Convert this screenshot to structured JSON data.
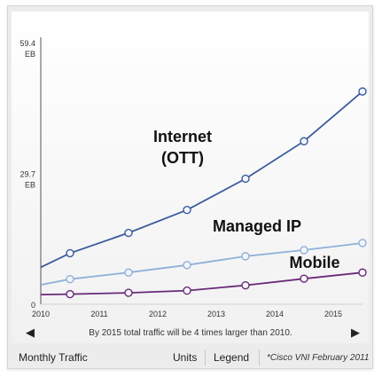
{
  "chart_data": {
    "type": "line",
    "x": [
      2010.5,
      2011.5,
      2012.5,
      2013.5,
      2014.5,
      2015.5
    ],
    "x_ticks": [
      "2010",
      "2011",
      "2012",
      "2013",
      "2014",
      "2015"
    ],
    "xlim": [
      2010,
      2015.5
    ],
    "ylim": [
      0,
      59.4
    ],
    "y_ticks": [
      {
        "value": 59.4,
        "label": "59.4",
        "unit": "EB"
      },
      {
        "value": 29.7,
        "label": "29.7",
        "unit": "EB"
      },
      {
        "value": 0,
        "label": "0",
        "unit": ""
      }
    ],
    "grid": false,
    "series": [
      {
        "name": "Internet (OTT)",
        "color": "#3a5b9e",
        "start_value": 8.4,
        "values": [
          11.6,
          16.2,
          21.4,
          28.5,
          37.0,
          48.3
        ]
      },
      {
        "name": "Managed IP",
        "color": "#8fb0d8",
        "start_value": 4.4,
        "values": [
          5.7,
          7.2,
          8.9,
          10.9,
          12.3,
          13.9
        ]
      },
      {
        "name": "Mobile",
        "color": "#6a2a78",
        "start_value": 2.2,
        "values": [
          2.3,
          2.6,
          3.1,
          4.3,
          5.8,
          7.2
        ]
      }
    ],
    "series_labels": [
      {
        "lines": [
          "Internet",
          "(OTT)"
        ]
      },
      {
        "lines": [
          "Managed IP"
        ]
      },
      {
        "lines": [
          "Mobile"
        ]
      }
    ],
    "caption": "By 2015 total traffic will be 4 times larger than 2010."
  },
  "nav": {
    "prev_icon": "chevron-left-icon",
    "next_icon": "chevron-right-icon",
    "prev_glyph": "◀",
    "next_glyph": "▶"
  },
  "footer": {
    "title": "Monthly Traffic",
    "units_label": "Units",
    "legend_label": "Legend",
    "source": "*Cisco VNI February 2011"
  }
}
